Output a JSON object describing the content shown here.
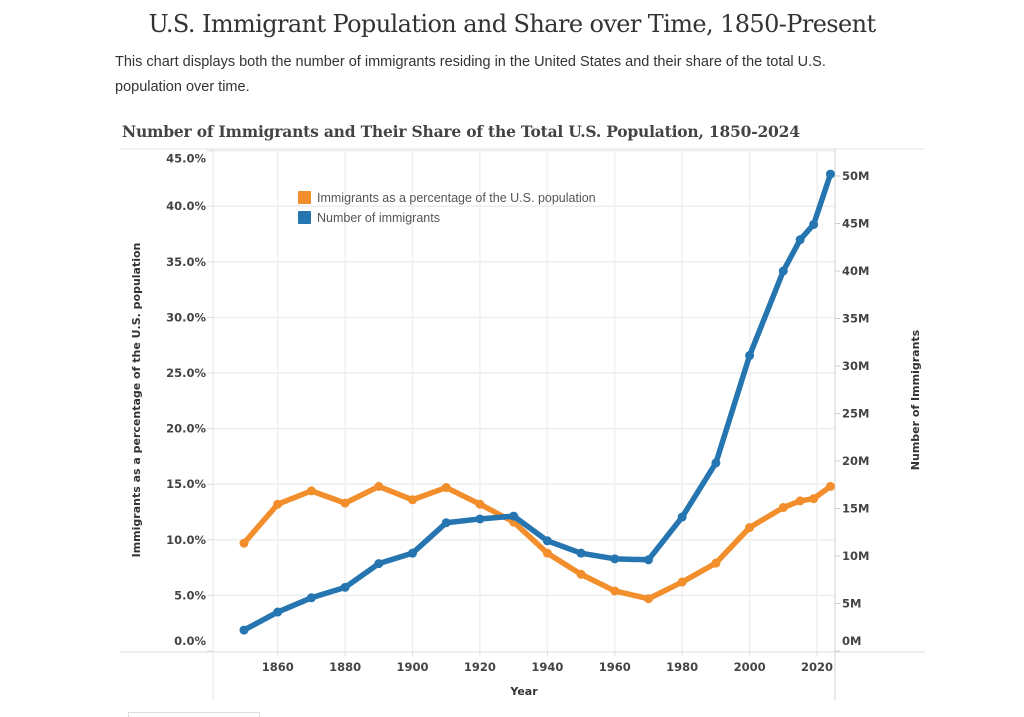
{
  "page": {
    "title": "U.S. Immigrant Population and Share over Time, 1850-Present",
    "description": "This chart displays both the number of immigrants residing in the United States and their share of the total U.S. population over time."
  },
  "chart_data": {
    "type": "line",
    "title": "Number of Immigrants and Their Share of the Total U.S. Population, 1850-2024",
    "xlabel": "Year",
    "ylabel_left": "Immigrants as a percentage of the U.S. population",
    "ylabel_right": "Number of Immigrants",
    "x": [
      1850,
      1860,
      1870,
      1880,
      1890,
      1900,
      1910,
      1920,
      1930,
      1940,
      1950,
      1960,
      1970,
      1980,
      1990,
      2000,
      2010,
      2015,
      2019,
      2024
    ],
    "xlim": [
      1841,
      2026
    ],
    "x_ticks": [
      1860,
      1880,
      1900,
      1920,
      1940,
      1960,
      1980,
      2000,
      2020
    ],
    "x_tick_labels": [
      "1860",
      "1880",
      "1900",
      "1920",
      "1940",
      "1960",
      "1980",
      "2000",
      "2020"
    ],
    "ylim_left": [
      0,
      45
    ],
    "y_ticks_left": [
      0,
      5,
      10,
      15,
      20,
      25,
      30,
      35,
      40,
      45
    ],
    "y_tick_labels_left": [
      "0.0%",
      "5.0%",
      "10.0%",
      "15.0%",
      "20.0%",
      "25.0%",
      "30.0%",
      "35.0%",
      "40.0%",
      "45.0%"
    ],
    "ylim_right": [
      0,
      50
    ],
    "y_ticks_right": [
      0,
      5,
      10,
      15,
      20,
      25,
      30,
      35,
      40,
      45,
      50
    ],
    "y_tick_labels_right": [
      "0M",
      "5M",
      "10M",
      "15M",
      "20M",
      "25M",
      "30M",
      "35M",
      "40M",
      "45M",
      "50M"
    ],
    "grid": true,
    "legend_position": "top-left",
    "series": [
      {
        "name": "Immigrants as a percentage of the U.S. population",
        "axis": "left",
        "unit": "percent",
        "color": "#F28E2B",
        "values": [
          9.7,
          13.2,
          14.4,
          13.3,
          14.8,
          13.6,
          14.7,
          13.2,
          11.6,
          8.8,
          6.9,
          5.4,
          4.7,
          6.2,
          7.9,
          11.1,
          12.9,
          13.5,
          13.7,
          14.8
        ]
      },
      {
        "name": "Number of immigrants",
        "axis": "right",
        "unit": "millions",
        "color": "#2575B0",
        "values": [
          2.2,
          4.1,
          5.6,
          6.7,
          9.2,
          10.3,
          13.5,
          13.9,
          14.2,
          11.6,
          10.3,
          9.7,
          9.6,
          14.1,
          19.8,
          31.1,
          40.0,
          43.3,
          44.9,
          50.2
        ]
      }
    ]
  }
}
